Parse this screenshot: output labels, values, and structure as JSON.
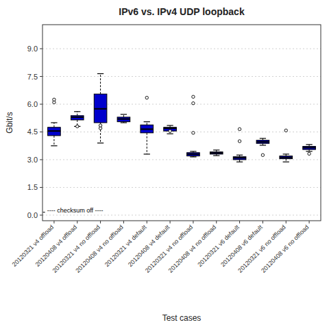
{
  "chart_data": {
    "type": "box",
    "title": "IPv6 vs. IPv4 UDP loopback",
    "x_label": "Test cases",
    "y_label": "Gbit/s",
    "annotation": "---- checksum off ----",
    "ylim": [
      -0.3,
      10.3
    ],
    "yticks": [
      {
        "value": 0.0,
        "label": "0.0"
      },
      1.5,
      {
        "value": 3.0,
        "label": "3.0"
      },
      4.5,
      {
        "value": 6.0,
        "label": "6.0"
      },
      7.5,
      {
        "value": 9.0,
        "label": "9.0"
      }
    ],
    "grid": true,
    "color": "#0000cc",
    "categories": [
      "20120321 v4 offload",
      "20120408 v4 offload",
      "20120321 v4 no offload",
      "20120408 v4 no offload",
      "20120321 v4 default",
      "20120408 v4 default",
      "20120321 v4 no offload",
      "20120408 v4 no offload",
      "20120321 v6 default",
      "20120408 v6 default",
      "20120321 v6 no offload",
      "20120408 v6 no offload"
    ],
    "boxes": [
      {
        "q1": 4.3,
        "median": 4.55,
        "q3": 4.75,
        "whislo": 3.75,
        "whishi": 5.0,
        "fliers": [
          6.1,
          6.25
        ]
      },
      {
        "q1": 5.15,
        "median": 5.3,
        "q3": 5.38,
        "whislo": 4.8,
        "whishi": 5.6,
        "fliers": [
          4.8
        ]
      },
      {
        "q1": 5.0,
        "median": 5.75,
        "q3": 6.55,
        "whislo": 3.9,
        "whishi": 7.65,
        "fliers": [
          4.7,
          4.85
        ]
      },
      {
        "q1": 5.05,
        "median": 5.2,
        "q3": 5.3,
        "whislo": 5.0,
        "whishi": 5.45,
        "fliers": []
      },
      {
        "q1": 4.45,
        "median": 4.65,
        "q3": 4.88,
        "whislo": 3.3,
        "whishi": 5.05,
        "fliers": [
          6.35
        ]
      },
      {
        "q1": 4.55,
        "median": 4.7,
        "q3": 4.75,
        "whislo": 4.4,
        "whishi": 4.85,
        "fliers": [
          4.55
        ]
      },
      {
        "q1": 3.2,
        "median": 3.3,
        "q3": 3.38,
        "whislo": 3.15,
        "whishi": 3.45,
        "fliers": [
          4.45,
          6.05,
          6.4
        ]
      },
      {
        "q1": 3.3,
        "median": 3.36,
        "q3": 3.42,
        "whislo": 3.22,
        "whishi": 3.52,
        "fliers": []
      },
      {
        "q1": 3.0,
        "median": 3.1,
        "q3": 3.16,
        "whislo": 2.88,
        "whishi": 3.25,
        "fliers": [
          4.0,
          4.65
        ]
      },
      {
        "q1": 3.88,
        "median": 3.96,
        "q3": 4.05,
        "whislo": 3.78,
        "whishi": 4.15,
        "fliers": [
          3.25
        ]
      },
      {
        "q1": 3.05,
        "median": 3.12,
        "q3": 3.2,
        "whislo": 2.88,
        "whishi": 3.3,
        "fliers": [
          4.58
        ]
      },
      {
        "q1": 3.55,
        "median": 3.65,
        "q3": 3.72,
        "whislo": 3.45,
        "whishi": 3.82,
        "fliers": [
          3.32
        ]
      }
    ]
  }
}
